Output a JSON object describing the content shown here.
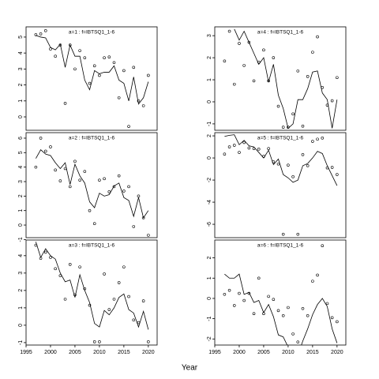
{
  "xlabel": "Year",
  "chart_data": [
    {
      "type": "scatter-line",
      "title": "a=1 : f=IBTSQ1_1-6",
      "x": [
        1997,
        1998,
        1999,
        2000,
        2001,
        2002,
        2003,
        2004,
        2005,
        2006,
        2007,
        2008,
        2009,
        2010,
        2011,
        2012,
        2013,
        2014,
        2015,
        2016,
        2017,
        2018,
        2019,
        2020
      ],
      "values": [
        5.15,
        5.2,
        5.4,
        4.25,
        3.8,
        4.5,
        0.85,
        4.5,
        3.0,
        4.15,
        3.7,
        2.1,
        3.2,
        2.6,
        3.7,
        3.75,
        3.4,
        1.2,
        2.9,
        -0.6,
        3.1,
        1.0,
        0.7,
        2.6
      ],
      "fit_values": [
        5.1,
        5.0,
        4.95,
        4.35,
        4.2,
        4.55,
        3.1,
        4.5,
        3.8,
        3.8,
        2.3,
        1.7,
        2.9,
        2.7,
        2.8,
        2.8,
        3.2,
        2.3,
        2.1,
        1.0,
        2.5,
        0.8,
        1.2,
        2.2
      ],
      "xlim": [
        1995,
        2021.8
      ],
      "ylim": [
        -0.84,
        5.64
      ],
      "yticks": [
        0,
        1,
        2,
        3,
        4,
        5
      ]
    },
    {
      "type": "scatter-line",
      "title": "a=2 : f=IBTSQ1_1-6",
      "x": [
        1997,
        1998,
        1999,
        2000,
        2001,
        2002,
        2003,
        2004,
        2005,
        2006,
        2007,
        2008,
        2009,
        2010,
        2011,
        2012,
        2013,
        2014,
        2015,
        2016,
        2017,
        2018,
        2019,
        2020
      ],
      "values": [
        4.0,
        6.0,
        5.1,
        5.4,
        3.8,
        3.05,
        3.9,
        2.65,
        4.4,
        3.1,
        3.7,
        1.0,
        0.1,
        3.1,
        3.2,
        2.3,
        2.65,
        3.4,
        2.35,
        2.65,
        -0.1,
        2.0,
        0.5,
        -0.7
      ],
      "fit_values": [
        4.6,
        5.2,
        4.9,
        4.8,
        4.3,
        3.9,
        4.3,
        2.8,
        4.2,
        3.4,
        2.9,
        1.6,
        1.2,
        2.2,
        2.0,
        2.1,
        2.7,
        2.9,
        1.9,
        1.7,
        0.6,
        1.9,
        0.5,
        1.0
      ],
      "xlim": [
        1995,
        2021.8
      ],
      "ylim": [
        -0.87,
        6.38
      ],
      "yticks": [
        -1,
        0,
        1,
        2,
        3,
        4,
        5,
        6
      ]
    },
    {
      "type": "scatter-line",
      "title": "a=3 : f=IBTSQ1_1-6",
      "x": [
        1997,
        1998,
        1999,
        2000,
        2001,
        2002,
        2003,
        2004,
        2005,
        2006,
        2007,
        2008,
        2009,
        2010,
        2011,
        2012,
        2013,
        2014,
        2015,
        2016,
        2017,
        2018,
        2019,
        2020
      ],
      "values": [
        4.6,
        3.85,
        4.2,
        3.9,
        3.25,
        2.85,
        1.5,
        3.5,
        1.75,
        3.35,
        2.1,
        1.15,
        -0.95,
        -0.95,
        2.95,
        0.9,
        1.5,
        2.45,
        3.35,
        1.65,
        0.3,
        0.15,
        1.4,
        -0.95
      ],
      "fit_values": [
        4.8,
        3.9,
        4.4,
        4.0,
        3.8,
        3.0,
        2.5,
        2.6,
        1.6,
        2.9,
        2.0,
        1.3,
        0.1,
        -0.1,
        0.85,
        0.6,
        1.0,
        1.6,
        1.8,
        0.9,
        0.7,
        -0.1,
        0.8,
        -0.25
      ],
      "xlim": [
        1995,
        2021.8
      ],
      "ylim": [
        -1.14,
        4.9
      ],
      "yticks": [
        -1,
        0,
        1,
        2,
        3,
        4
      ],
      "xticks": [
        1995,
        2000,
        2005,
        2010,
        2015,
        2020
      ]
    },
    {
      "type": "scatter-line",
      "title": "a=4 : f=IBTSQ1_1-6",
      "x": [
        1997,
        1998,
        1999,
        2000,
        2001,
        2002,
        2003,
        2004,
        2005,
        2006,
        2007,
        2008,
        2009,
        2010,
        2011,
        2012,
        2013,
        2014,
        2015,
        2016,
        2017,
        2018,
        2019,
        2020
      ],
      "values": [
        1.85,
        3.2,
        0.8,
        2.65,
        1.65,
        2.7,
        0.95,
        1.8,
        2.35,
        0.95,
        2.0,
        -0.2,
        -1.15,
        -1.15,
        -0.55,
        1.4,
        -1.1,
        1.15,
        2.25,
        2.95,
        0.65,
        -0.15,
        0.05,
        1.1
      ],
      "fit_values": [
        null,
        null,
        3.3,
        2.8,
        3.2,
        2.7,
        2.2,
        1.7,
        2.0,
        0.9,
        1.7,
        0.3,
        -0.3,
        -1.2,
        -1.0,
        0.1,
        0.1,
        0.6,
        1.35,
        1.4,
        0.4,
        0.1,
        -1.2,
        0.1
      ],
      "xlim": [
        1995,
        2021.8
      ],
      "ylim": [
        -1.29,
        3.4
      ],
      "yticks": [
        -1,
        0,
        1,
        2,
        3
      ]
    },
    {
      "type": "scatter-line",
      "title": "a=5 : f=IBTSQ1_1-6",
      "x": [
        1997,
        1998,
        1999,
        2000,
        2001,
        2002,
        2003,
        2004,
        2005,
        2006,
        2007,
        2008,
        2009,
        2010,
        2011,
        2012,
        2013,
        2014,
        2015,
        2016,
        2017,
        2018,
        2019,
        2020
      ],
      "values": [
        0.35,
        1.0,
        1.15,
        0.5,
        1.4,
        0.9,
        0.85,
        0.8,
        0.15,
        0.85,
        -0.35,
        -0.55,
        -6.9,
        -0.65,
        -1.7,
        -6.9,
        0.3,
        -0.7,
        1.5,
        1.7,
        1.8,
        -0.9,
        -0.85,
        -1.5
      ],
      "fit_values": [
        1.95,
        2.05,
        2.1,
        1.2,
        1.6,
        1.1,
        1.0,
        0.5,
        0.0,
        0.7,
        -0.6,
        -0.1,
        -1.5,
        -1.8,
        -2.2,
        -2.0,
        -0.7,
        -0.5,
        0.0,
        0.6,
        0.4,
        -0.7,
        -1.6,
        -2.5
      ],
      "xlim": [
        1995,
        2021.8
      ],
      "ylim": [
        -7.21,
        2.29
      ],
      "yticks": [
        -6,
        -4,
        -2,
        0,
        2
      ]
    },
    {
      "type": "scatter-line",
      "title": "a=6 : f=IBTSQ1_1-6",
      "x": [
        1997,
        1998,
        1999,
        2000,
        2001,
        2002,
        2003,
        2004,
        2005,
        2006,
        2007,
        2008,
        2009,
        2010,
        2011,
        2012,
        2013,
        2014,
        2015,
        2016,
        2017,
        2018,
        2019,
        2020
      ],
      "values": [
        0.2,
        0.4,
        -0.35,
        0.25,
        -0.1,
        0.25,
        -0.75,
        1.0,
        -0.75,
        0.1,
        -0.05,
        -0.6,
        -0.85,
        -0.45,
        -1.75,
        -2.15,
        -0.5,
        -0.85,
        0.85,
        1.15,
        2.6,
        -0.25,
        -0.95,
        -1.15
      ],
      "fit_values": [
        1.2,
        1.0,
        1.0,
        1.2,
        0.2,
        0.3,
        -0.2,
        -0.1,
        -0.7,
        -0.3,
        -0.9,
        -1.8,
        -1.9,
        -2.4,
        -2.6,
        -2.8,
        -2.1,
        -1.5,
        -0.8,
        -0.3,
        0.0,
        -0.4,
        -1.5,
        -2.2
      ],
      "xlim": [
        1995,
        2021.8
      ],
      "ylim": [
        -2.3,
        2.88
      ],
      "yticks": [
        -2,
        -1,
        0,
        1,
        2
      ],
      "xticks": [
        1995,
        2000,
        2005,
        2010,
        2015,
        2020
      ]
    }
  ]
}
